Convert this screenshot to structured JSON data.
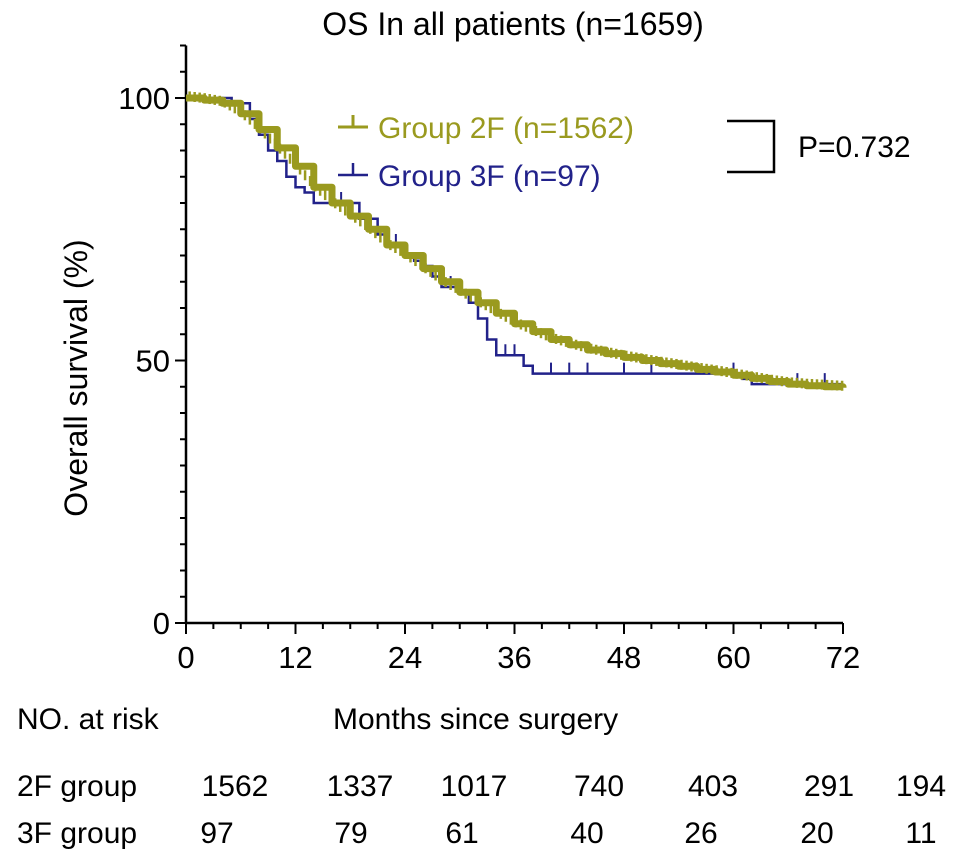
{
  "chart_data": {
    "type": "line",
    "subtype": "kaplan-meier",
    "title": "OS In all patients (n=1659)",
    "xlabel": "Months since surgery",
    "ylabel": "Overall survival (%)",
    "xlim": [
      0,
      72
    ],
    "ylim": [
      0,
      110
    ],
    "xticks": [
      0,
      12,
      24,
      36,
      48,
      60,
      72
    ],
    "yticks": [
      0,
      50,
      100
    ],
    "grid": false,
    "legend_position": "top-right",
    "p_value_label": "P=0.732",
    "series": [
      {
        "name": "Group 2F (n=1562)",
        "color": "#9a9a1f",
        "points": [
          [
            0,
            100
          ],
          [
            2,
            99.6
          ],
          [
            4,
            99
          ],
          [
            6,
            97
          ],
          [
            8,
            94
          ],
          [
            10,
            90.5
          ],
          [
            12,
            87
          ],
          [
            14,
            83
          ],
          [
            16,
            80
          ],
          [
            18,
            77.5
          ],
          [
            20,
            75
          ],
          [
            22,
            72
          ],
          [
            24,
            70
          ],
          [
            26,
            67.5
          ],
          [
            28,
            65
          ],
          [
            30,
            63
          ],
          [
            32,
            61
          ],
          [
            34,
            59
          ],
          [
            36,
            57
          ],
          [
            38,
            55.5
          ],
          [
            40,
            54
          ],
          [
            42,
            53
          ],
          [
            44,
            52
          ],
          [
            46,
            51.3
          ],
          [
            48,
            50.6
          ],
          [
            50,
            50
          ],
          [
            52,
            49.4
          ],
          [
            54,
            48.9
          ],
          [
            56,
            48.3
          ],
          [
            58,
            47.8
          ],
          [
            60,
            47.2
          ],
          [
            62,
            46.6
          ],
          [
            64,
            46
          ],
          [
            66,
            45.5
          ],
          [
            68,
            45.2
          ],
          [
            70,
            45
          ],
          [
            72,
            44.8
          ]
        ]
      },
      {
        "name": "Group 3F (n=97)",
        "color": "#22228a",
        "points": [
          [
            0,
            100
          ],
          [
            3,
            100
          ],
          [
            5,
            99
          ],
          [
            7,
            96
          ],
          [
            8,
            93
          ],
          [
            9,
            90
          ],
          [
            10,
            88
          ],
          [
            11,
            85
          ],
          [
            12,
            83
          ],
          [
            13,
            82
          ],
          [
            14,
            80
          ],
          [
            18,
            80
          ],
          [
            19,
            77
          ],
          [
            21,
            74
          ],
          [
            22,
            72
          ],
          [
            24,
            70
          ],
          [
            25,
            69
          ],
          [
            26,
            68
          ],
          [
            27,
            66
          ],
          [
            28,
            64
          ],
          [
            30,
            63
          ],
          [
            31,
            61
          ],
          [
            32,
            58
          ],
          [
            33,
            54
          ],
          [
            34,
            51
          ],
          [
            36,
            51
          ],
          [
            37,
            49
          ],
          [
            38,
            47.5
          ],
          [
            60,
            47.5
          ],
          [
            61,
            46.5
          ],
          [
            62,
            45.5
          ],
          [
            72,
            45.5
          ]
        ],
        "censor_x": [
          17,
          19,
          21,
          23,
          26,
          29,
          34,
          35,
          36,
          40,
          42,
          44,
          48,
          51,
          60,
          67,
          70
        ]
      }
    ],
    "risk_table": {
      "header": "NO. at risk",
      "times": [
        0,
        12,
        24,
        36,
        48,
        60,
        72
      ],
      "rows": [
        {
          "label": "2F group",
          "counts": [
            "1562",
            "1337",
            "1017",
            "740",
            "403",
            "291",
            "194"
          ]
        },
        {
          "label": "3F group",
          "counts": [
            "97",
            "79",
            "61",
            "40",
            "26",
            "20",
            "11"
          ]
        }
      ]
    }
  }
}
